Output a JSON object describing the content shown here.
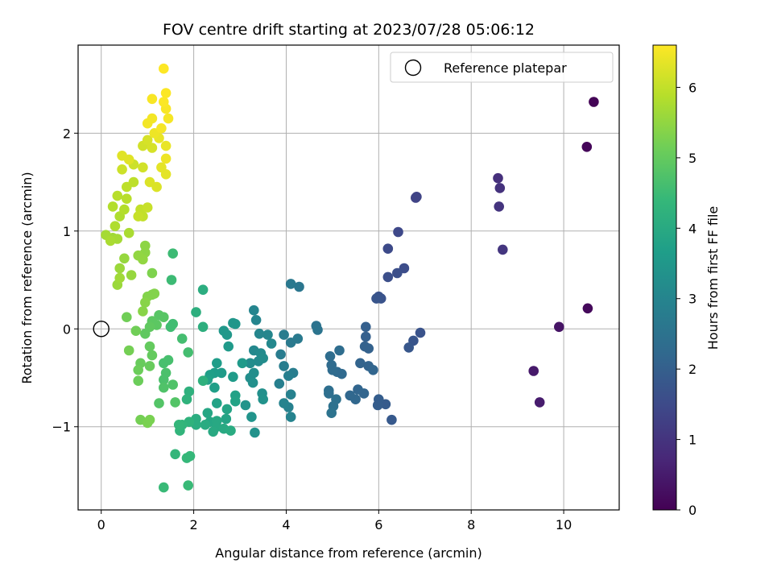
{
  "chart_data": {
    "type": "scatter",
    "title": "FOV centre drift starting at 2023/07/28 05:06:12",
    "xlabel": "Angular distance from reference (arcmin)",
    "ylabel": "Rotation from reference (arcmin)",
    "xlim": [
      -0.5,
      11.2
    ],
    "ylim": [
      -1.85,
      2.9
    ],
    "x_ticks": [
      0,
      2,
      4,
      6,
      8,
      10
    ],
    "y_ticks": [
      -1,
      0,
      1,
      2
    ],
    "x_tick_labels": [
      "0",
      "2",
      "4",
      "6",
      "8",
      "10"
    ],
    "y_tick_labels": [
      "−1",
      "0",
      "1",
      "2"
    ],
    "grid": true,
    "legend": {
      "location": "upper right",
      "entries": [
        {
          "label": "Reference platepar",
          "marker": "open-circle",
          "x": 0,
          "y": 0
        }
      ]
    },
    "colorbar": {
      "label": "Hours from first FF file",
      "colormap": "viridis",
      "range": [
        0,
        6.6
      ],
      "ticks": [
        0,
        1,
        2,
        3,
        4,
        5,
        6
      ],
      "tick_labels": [
        "0",
        "1",
        "2",
        "3",
        "4",
        "5",
        "6"
      ]
    },
    "colormap_stops": [
      "#440154",
      "#482878",
      "#3e4989",
      "#31688e",
      "#26828e",
      "#1f9e89",
      "#35b779",
      "#6ece58",
      "#b5de2b",
      "#fde725"
    ],
    "points": [
      [
        10.65,
        2.32,
        0.05
      ],
      [
        10.5,
        1.86,
        0.1
      ],
      [
        10.52,
        0.21,
        0.15
      ],
      [
        9.9,
        0.02,
        0.35
      ],
      [
        9.35,
        -0.43,
        0.45
      ],
      [
        9.48,
        -0.75,
        0.5
      ],
      [
        8.58,
        1.54,
        0.9
      ],
      [
        8.62,
        1.44,
        0.95
      ],
      [
        8.6,
        1.25,
        1.0
      ],
      [
        8.68,
        0.81,
        1.05
      ],
      [
        6.8,
        1.34,
        1.35
      ],
      [
        6.82,
        1.35,
        1.35
      ],
      [
        6.42,
        0.99,
        1.45
      ],
      [
        6.2,
        0.82,
        1.5
      ],
      [
        6.55,
        0.62,
        1.55
      ],
      [
        6.4,
        0.57,
        1.6
      ],
      [
        6.2,
        0.53,
        1.6
      ],
      [
        6.0,
        0.33,
        1.7
      ],
      [
        6.05,
        0.31,
        1.7
      ],
      [
        5.95,
        0.31,
        1.75
      ],
      [
        6.9,
        -0.04,
        1.7
      ],
      [
        6.75,
        -0.12,
        1.75
      ],
      [
        6.65,
        -0.19,
        1.8
      ],
      [
        6.28,
        -0.93,
        1.85
      ],
      [
        6.15,
        -0.77,
        1.9
      ],
      [
        6.0,
        -0.72,
        1.95
      ],
      [
        5.98,
        -0.78,
        1.95
      ],
      [
        5.72,
        0.02,
        2.0
      ],
      [
        5.72,
        -0.08,
        2.0
      ],
      [
        5.7,
        -0.18,
        2.05
      ],
      [
        5.78,
        -0.2,
        2.05
      ],
      [
        5.6,
        -0.35,
        2.1
      ],
      [
        5.78,
        -0.38,
        2.1
      ],
      [
        5.88,
        -0.42,
        2.15
      ],
      [
        5.68,
        -0.66,
        2.15
      ],
      [
        5.55,
        -0.62,
        2.15
      ],
      [
        5.5,
        -0.72,
        2.2
      ],
      [
        5.38,
        -0.68,
        2.2
      ],
      [
        5.2,
        -0.46,
        2.25
      ],
      [
        5.1,
        -0.44,
        2.25
      ],
      [
        5.0,
        -0.42,
        2.3
      ],
      [
        4.98,
        -0.37,
        2.3
      ],
      [
        4.95,
        -0.28,
        2.35
      ],
      [
        5.15,
        -0.22,
        2.35
      ],
      [
        4.92,
        -0.63,
        2.4
      ],
      [
        4.92,
        -0.66,
        2.4
      ],
      [
        5.08,
        -0.72,
        2.45
      ],
      [
        5.02,
        -0.79,
        2.45
      ],
      [
        4.98,
        -0.86,
        2.5
      ],
      [
        4.65,
        0.03,
        2.5
      ],
      [
        4.68,
        -0.01,
        2.55
      ],
      [
        4.28,
        0.43,
        2.6
      ],
      [
        4.1,
        0.46,
        2.65
      ],
      [
        4.25,
        -0.1,
        2.7
      ],
      [
        4.1,
        -0.14,
        2.7
      ],
      [
        3.95,
        -0.06,
        2.75
      ],
      [
        3.88,
        -0.26,
        2.75
      ],
      [
        3.95,
        -0.38,
        2.8
      ],
      [
        4.15,
        -0.45,
        2.8
      ],
      [
        4.05,
        -0.48,
        2.85
      ],
      [
        3.85,
        -0.56,
        2.85
      ],
      [
        4.1,
        -0.67,
        2.9
      ],
      [
        4.05,
        -0.8,
        2.9
      ],
      [
        3.95,
        -0.76,
        2.95
      ],
      [
        4.1,
        -0.9,
        2.95
      ],
      [
        3.3,
        0.19,
        3.0
      ],
      [
        3.35,
        0.09,
        3.0
      ],
      [
        3.42,
        -0.05,
        3.05
      ],
      [
        3.6,
        -0.06,
        3.05
      ],
      [
        3.68,
        -0.15,
        3.1
      ],
      [
        3.3,
        -0.22,
        3.1
      ],
      [
        3.45,
        -0.25,
        3.15
      ],
      [
        3.4,
        -0.33,
        3.15
      ],
      [
        3.5,
        -0.3,
        3.2
      ],
      [
        3.22,
        -0.35,
        3.2
      ],
      [
        3.3,
        -0.45,
        3.25
      ],
      [
        3.22,
        -0.5,
        3.25
      ],
      [
        3.28,
        -0.55,
        3.3
      ],
      [
        3.48,
        -0.66,
        3.3
      ],
      [
        3.5,
        -0.72,
        3.35
      ],
      [
        3.32,
        -1.06,
        3.35
      ],
      [
        3.25,
        -0.9,
        3.4
      ],
      [
        3.12,
        -0.78,
        3.4
      ],
      [
        2.9,
        0.05,
        3.45
      ],
      [
        2.85,
        0.06,
        3.45
      ],
      [
        2.65,
        -0.02,
        3.5
      ],
      [
        2.72,
        -0.06,
        3.5
      ],
      [
        2.75,
        -0.18,
        3.55
      ],
      [
        3.05,
        -0.35,
        3.55
      ],
      [
        2.85,
        -0.49,
        3.6
      ],
      [
        2.6,
        -0.45,
        3.6
      ],
      [
        2.5,
        -0.35,
        3.65
      ],
      [
        2.45,
        -0.45,
        3.65
      ],
      [
        2.35,
        -0.47,
        3.7
      ],
      [
        2.45,
        -0.6,
        3.7
      ],
      [
        2.3,
        -0.52,
        3.75
      ],
      [
        2.9,
        -0.68,
        3.75
      ],
      [
        2.9,
        -0.74,
        3.8
      ],
      [
        2.5,
        -0.76,
        3.8
      ],
      [
        2.72,
        -0.82,
        3.85
      ],
      [
        2.7,
        -0.92,
        3.85
      ],
      [
        2.3,
        -0.86,
        3.9
      ],
      [
        2.35,
        -0.95,
        3.9
      ],
      [
        2.5,
        -0.94,
        3.95
      ],
      [
        2.5,
        -1.0,
        3.95
      ],
      [
        2.42,
        -1.05,
        4.0
      ],
      [
        2.65,
        -1.02,
        4.0
      ],
      [
        2.8,
        -1.04,
        4.05
      ],
      [
        2.25,
        -0.98,
        4.05
      ],
      [
        2.05,
        -0.98,
        4.1
      ],
      [
        2.05,
        -0.92,
        4.1
      ],
      [
        2.2,
        0.4,
        4.1
      ],
      [
        2.05,
        0.17,
        4.15
      ],
      [
        2.2,
        0.02,
        4.15
      ],
      [
        2.2,
        -0.53,
        4.2
      ],
      [
        1.9,
        -0.64,
        4.2
      ],
      [
        1.85,
        -0.72,
        4.25
      ],
      [
        1.9,
        -0.95,
        4.25
      ],
      [
        1.75,
        -0.98,
        4.3
      ],
      [
        1.7,
        -1.04,
        4.3
      ],
      [
        1.68,
        -0.98,
        4.35
      ],
      [
        1.6,
        -1.28,
        4.35
      ],
      [
        1.85,
        -1.32,
        4.4
      ],
      [
        1.92,
        -1.3,
        4.4
      ],
      [
        1.35,
        -1.62,
        4.45
      ],
      [
        1.88,
        -1.6,
        4.45
      ],
      [
        1.55,
        0.77,
        4.5
      ],
      [
        1.52,
        0.5,
        4.5
      ],
      [
        1.5,
        0.02,
        4.55
      ],
      [
        1.55,
        0.05,
        4.55
      ],
      [
        1.75,
        -0.1,
        4.6
      ],
      [
        1.88,
        -0.24,
        4.6
      ],
      [
        1.45,
        -0.32,
        4.65
      ],
      [
        1.35,
        -0.35,
        4.65
      ],
      [
        1.4,
        -0.45,
        4.7
      ],
      [
        1.35,
        -0.52,
        4.7
      ],
      [
        1.35,
        -0.6,
        4.75
      ],
      [
        1.55,
        -0.57,
        4.75
      ],
      [
        1.6,
        -0.75,
        4.8
      ],
      [
        1.25,
        -0.76,
        4.8
      ],
      [
        1.35,
        0.12,
        4.85
      ],
      [
        1.25,
        0.14,
        4.85
      ],
      [
        1.2,
        0.04,
        4.9
      ],
      [
        1.1,
        0.08,
        4.9
      ],
      [
        1.05,
        0.02,
        4.95
      ],
      [
        0.95,
        -0.05,
        4.95
      ],
      [
        1.05,
        -0.18,
        5.0
      ],
      [
        1.1,
        -0.27,
        5.0
      ],
      [
        1.05,
        -0.38,
        5.05
      ],
      [
        0.85,
        -0.35,
        5.05
      ],
      [
        0.8,
        -0.42,
        5.1
      ],
      [
        0.8,
        -0.53,
        5.1
      ],
      [
        0.75,
        -0.02,
        5.15
      ],
      [
        0.55,
        0.12,
        5.15
      ],
      [
        0.6,
        -0.22,
        5.2
      ],
      [
        0.85,
        -0.93,
        5.2
      ],
      [
        1.0,
        -0.96,
        5.25
      ],
      [
        1.05,
        -0.93,
        5.25
      ],
      [
        1.1,
        0.35,
        5.3
      ],
      [
        1.1,
        0.57,
        5.3
      ],
      [
        1.15,
        0.36,
        5.35
      ],
      [
        1.0,
        0.33,
        5.35
      ],
      [
        0.95,
        0.27,
        5.4
      ],
      [
        0.9,
        0.18,
        5.4
      ],
      [
        0.95,
        0.78,
        5.45
      ],
      [
        0.95,
        0.85,
        5.45
      ],
      [
        0.9,
        0.71,
        5.5
      ],
      [
        0.8,
        0.75,
        5.5
      ],
      [
        0.65,
        0.55,
        5.55
      ],
      [
        0.5,
        0.72,
        5.55
      ],
      [
        0.4,
        0.62,
        5.6
      ],
      [
        0.35,
        0.45,
        5.6
      ],
      [
        0.4,
        0.52,
        5.65
      ],
      [
        0.25,
        0.93,
        5.65
      ],
      [
        0.35,
        0.92,
        5.7
      ],
      [
        0.1,
        0.96,
        5.7
      ],
      [
        0.2,
        0.9,
        5.75
      ],
      [
        0.6,
        0.98,
        5.75
      ],
      [
        0.3,
        1.05,
        5.8
      ],
      [
        0.4,
        1.15,
        5.8
      ],
      [
        0.25,
        1.25,
        5.85
      ],
      [
        0.5,
        1.22,
        5.85
      ],
      [
        0.55,
        1.33,
        5.9
      ],
      [
        0.35,
        1.36,
        5.9
      ],
      [
        0.55,
        1.45,
        5.95
      ],
      [
        0.7,
        1.5,
        5.95
      ],
      [
        0.85,
        1.22,
        6.0
      ],
      [
        0.9,
        1.15,
        6.0
      ],
      [
        1.0,
        1.24,
        6.05
      ],
      [
        0.8,
        1.15,
        6.05
      ],
      [
        0.45,
        1.63,
        6.1
      ],
      [
        0.7,
        1.68,
        6.1
      ],
      [
        0.9,
        1.65,
        6.15
      ],
      [
        0.9,
        1.87,
        6.15
      ],
      [
        1.1,
        1.85,
        6.2
      ],
      [
        1.0,
        1.93,
        6.2
      ],
      [
        1.05,
        1.5,
        6.25
      ],
      [
        1.2,
        1.45,
        6.25
      ],
      [
        0.45,
        1.77,
        6.3
      ],
      [
        0.6,
        1.73,
        6.3
      ],
      [
        1.4,
        1.58,
        6.35
      ],
      [
        1.3,
        1.65,
        6.35
      ],
      [
        1.25,
        1.95,
        6.4
      ],
      [
        1.4,
        1.87,
        6.4
      ],
      [
        1.4,
        1.74,
        6.45
      ],
      [
        1.15,
        2.0,
        6.45
      ],
      [
        1.0,
        2.1,
        6.5
      ],
      [
        1.1,
        2.15,
        6.5
      ],
      [
        1.3,
        2.05,
        6.52
      ],
      [
        1.45,
        2.15,
        6.52
      ],
      [
        1.4,
        2.25,
        6.55
      ],
      [
        1.1,
        2.35,
        6.55
      ],
      [
        1.35,
        2.32,
        6.58
      ],
      [
        1.4,
        2.41,
        6.58
      ],
      [
        1.35,
        2.66,
        6.6
      ]
    ]
  }
}
